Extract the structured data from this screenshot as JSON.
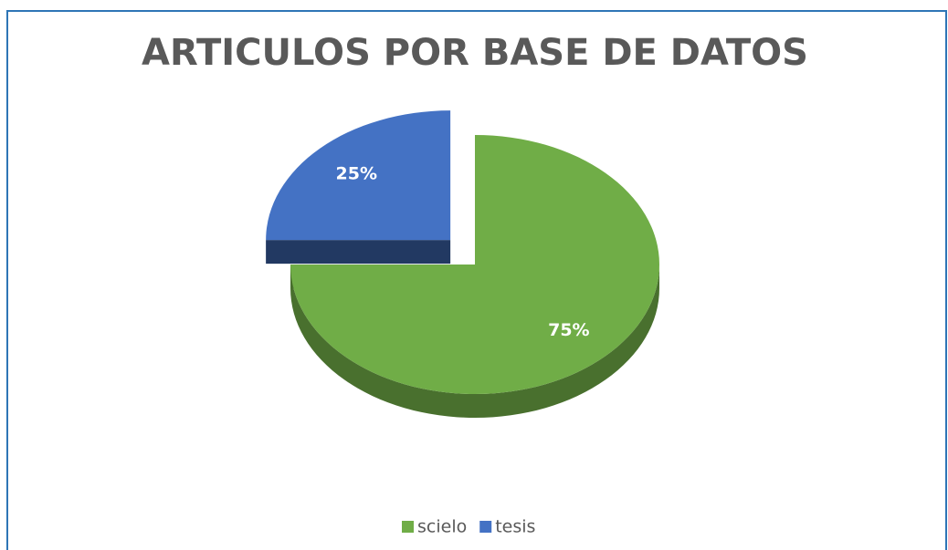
{
  "chart_data": {
    "type": "pie",
    "title": "ARTICULOS POR BASE DE DATOS",
    "categories": [
      "scielo",
      "tesis"
    ],
    "values": [
      75,
      25
    ],
    "value_labels": [
      "75%",
      "25%"
    ],
    "colors": [
      "#70ad47",
      "#4472c4"
    ],
    "legend": "bottom"
  }
}
